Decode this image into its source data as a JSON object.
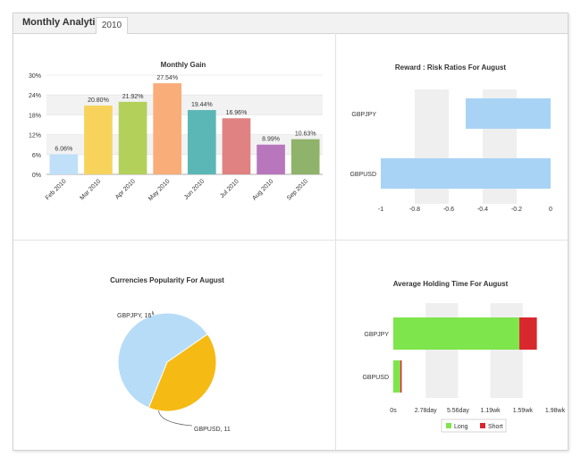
{
  "header": {
    "title": "Monthly Analytics",
    "tab_label": "2010"
  },
  "charts": {
    "monthly_gain": {
      "type": "bar",
      "title": "Monthly Gain",
      "categories": [
        "Feb 2010",
        "Mar 2010",
        "Apr 2010",
        "May 2010",
        "Jun 2010",
        "Jul 2010",
        "Aug 2010",
        "Sep 2010"
      ],
      "values": [
        6.06,
        20.8,
        21.92,
        27.54,
        19.44,
        16.96,
        8.99,
        10.63
      ],
      "value_labels": [
        "6.06%",
        "20.80%",
        "21.92%",
        "27.54%",
        "19.44%",
        "16.96%",
        "8.99%",
        "10.63%"
      ],
      "colors": [
        "#bfe0f8",
        "#f7d35c",
        "#b3d15a",
        "#f9ad78",
        "#5bb7b6",
        "#e08282",
        "#b877bd",
        "#8fb36a"
      ],
      "y_ticks": [
        "0%",
        "6%",
        "12%",
        "18%",
        "24%",
        "30%"
      ],
      "ylim": [
        0,
        30
      ]
    },
    "risk_ratios": {
      "type": "bar",
      "title": "Reward : Risk Ratios For August",
      "categories": [
        "GBPJPY",
        "GBPUSD"
      ],
      "ranges": [
        [
          -0.5,
          0
        ],
        [
          -1,
          0
        ]
      ],
      "x_ticks": [
        "-1",
        "-0.8",
        "-0.6",
        "-0.4",
        "-0.2",
        "0"
      ],
      "xlim": [
        -1,
        0
      ],
      "bar_color": "#a9d3f5"
    },
    "popularity": {
      "type": "pie",
      "title": "Currencies Popularity For August",
      "slices": [
        {
          "label": "GBPJPY, 16",
          "value": 16,
          "color": "#b7dcf8"
        },
        {
          "label": "GBPUSD, 11",
          "value": 11,
          "color": "#f5ba14"
        }
      ]
    },
    "holding_time": {
      "type": "bar",
      "title": "Average Holding Time For August",
      "categories": [
        "GBPJPY",
        "GBPUSD"
      ],
      "long_days": [
        10.8,
        0.6
      ],
      "short_days": [
        1.5,
        0.12
      ],
      "x_ticks": [
        "0s",
        "2.78day",
        "5.56day",
        "1.19wk",
        "1.59wk",
        "1.98wk"
      ],
      "xlim": [
        0,
        13.86
      ],
      "legend": [
        {
          "label": "Long",
          "color": "#7ee54c"
        },
        {
          "label": "Short",
          "color": "#d9272e"
        }
      ]
    }
  }
}
